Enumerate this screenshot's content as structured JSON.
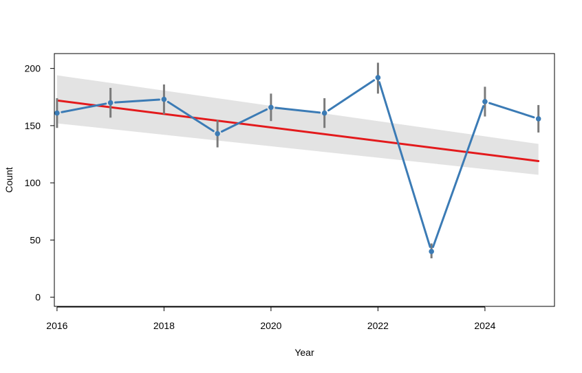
{
  "chart_data": {
    "type": "line",
    "title": "",
    "xlabel": "Year",
    "ylabel": "Count",
    "xlim": [
      2015.95,
      2025.3
    ],
    "ylim": [
      -8,
      213
    ],
    "x_ticks": [
      2016,
      2018,
      2020,
      2022,
      2024
    ],
    "x_tick_labels": [
      "2016",
      "2018",
      "2020",
      "2022",
      "2024"
    ],
    "y_ticks": [
      0,
      50,
      100,
      150,
      200
    ],
    "y_tick_labels": [
      "0",
      "50",
      "100",
      "150",
      "200"
    ],
    "grid": false,
    "legend": "none",
    "series": [
      {
        "type": "line-with-errorbars",
        "color": "#3b7bb5",
        "errorbar_color": "#7a7a7a",
        "x": [
          2016,
          2017,
          2018,
          2019,
          2020,
          2021,
          2022,
          2023,
          2024,
          2025
        ],
        "y": [
          161,
          170,
          173,
          143,
          166,
          161,
          192,
          40,
          171,
          156
        ],
        "lower": [
          148,
          157,
          160,
          131,
          154,
          148,
          178,
          34,
          158,
          144
        ],
        "upper": [
          174,
          183,
          186,
          155,
          178,
          174,
          205,
          47,
          184,
          168
        ]
      },
      {
        "type": "trend",
        "color": "#e31a1c",
        "band_color": "#e3e3e3",
        "x": [
          2016,
          2025
        ],
        "y": [
          172,
          119
        ],
        "band_lower": [
          152,
          107
        ],
        "band_upper": [
          194,
          134
        ]
      }
    ]
  }
}
